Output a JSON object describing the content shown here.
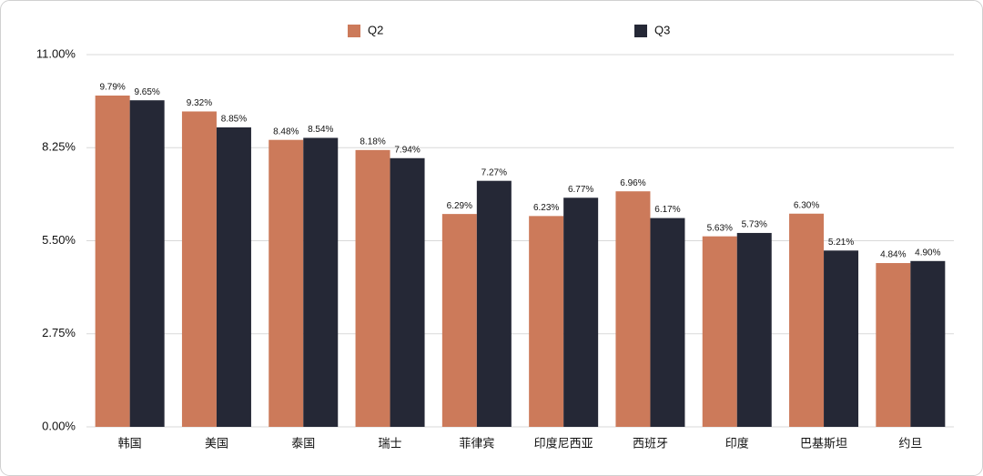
{
  "chart_data": {
    "type": "bar",
    "categories": [
      "韩国",
      "美国",
      "泰国",
      "瑞士",
      "菲律宾",
      "印度尼西亚",
      "西班牙",
      "印度",
      "巴基斯坦",
      "约旦"
    ],
    "series": [
      {
        "name": "Q2",
        "color": "#cc7a5a",
        "values": [
          9.79,
          9.32,
          8.48,
          8.18,
          6.29,
          6.23,
          6.96,
          5.63,
          6.3,
          4.84
        ],
        "value_labels": [
          "9.79%",
          "9.32%",
          "8.48%",
          "8.18%",
          "6.29%",
          "6.23%",
          "6.96%",
          "5.63%",
          "6.30%",
          "4.84%"
        ]
      },
      {
        "name": "Q3",
        "color": "#252836",
        "values": [
          9.65,
          8.85,
          8.54,
          7.94,
          7.27,
          6.77,
          6.17,
          5.73,
          5.21,
          4.9
        ],
        "value_labels": [
          "9.65%",
          "8.85%",
          "8.54%",
          "7.94%",
          "7.27%",
          "6.77%",
          "6.17%",
          "5.73%",
          "5.21%",
          "4.90%"
        ]
      }
    ],
    "ylim": [
      0,
      11
    ],
    "yticks": [
      {
        "value": 0,
        "label": "0.00%"
      },
      {
        "value": 2.75,
        "label": "2.75%"
      },
      {
        "value": 5.5,
        "label": "5.50%"
      },
      {
        "value": 8.25,
        "label": "8.25%"
      },
      {
        "value": 11,
        "label": "11.00%"
      }
    ],
    "grid": true,
    "legend": "top"
  }
}
